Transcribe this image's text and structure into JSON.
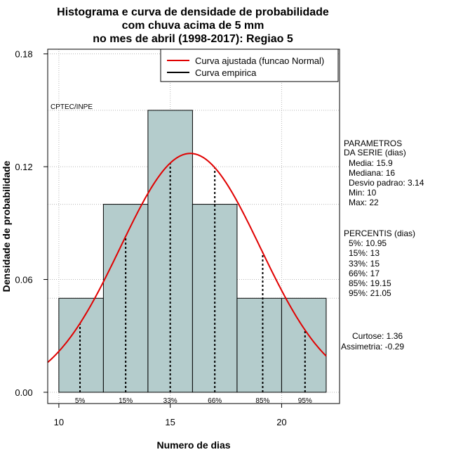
{
  "chart_data": {
    "type": "bar",
    "title_lines": [
      "Histograma e curva de densidade de probabilidade",
      "com chuva acima de 5 mm",
      "no mes de abril (1998-2017): Regiao 5"
    ],
    "xlabel": "Numero de dias",
    "ylabel": "Densidade de probabilidade",
    "xlim": [
      9.5,
      22.6
    ],
    "ylim": [
      -0.006,
      0.1825
    ],
    "x_ticks": [
      10,
      15,
      20
    ],
    "y_ticks": [
      "0.00",
      "0.06",
      "0.12",
      "0.18"
    ],
    "grid": true,
    "legend_position": "top-right",
    "bins": [
      {
        "from": 10,
        "to": 12,
        "density": 0.05
      },
      {
        "from": 12,
        "to": 14,
        "density": 0.1
      },
      {
        "from": 14,
        "to": 16,
        "density": 0.15
      },
      {
        "from": 16,
        "to": 18,
        "density": 0.1
      },
      {
        "from": 18,
        "to": 20,
        "density": 0.05
      },
      {
        "from": 20,
        "to": 22,
        "density": 0.05
      }
    ],
    "bar_color": "#b4cccc",
    "normal_curve": {
      "name": "Curva ajustada (funcao Normal)",
      "mean": 15.9,
      "sd": 3.14,
      "color": "#e00000"
    },
    "empirical_curve": {
      "name": "Curva empirica",
      "color": "#000000"
    },
    "percentiles": [
      {
        "label": "5%",
        "x": 10.95
      },
      {
        "label": "15%",
        "x": 13
      },
      {
        "label": "33%",
        "x": 15
      },
      {
        "label": "66%",
        "x": 17
      },
      {
        "label": "85%",
        "x": 19.15
      },
      {
        "label": "95%",
        "x": 21.05
      }
    ],
    "annotation": "CPTEC/INPE"
  },
  "side_panel": {
    "params_title_1": "PARAMETROS",
    "params_title_2": "DA SERIE (dias)",
    "params": [
      "Media: 15.9",
      "Mediana: 16",
      "Desvio padrao: 3.14",
      "Min: 10",
      "Max: 22"
    ],
    "perc_title": "PERCENTIS (dias)",
    "percs": [
      "5%: 10.95",
      "15%: 13",
      "33%: 15",
      "66%: 17",
      "85%: 19.15",
      "95%: 21.05"
    ],
    "curtose": "Curtose: 1.36",
    "assimetria": "Assimetria: -0.29"
  }
}
